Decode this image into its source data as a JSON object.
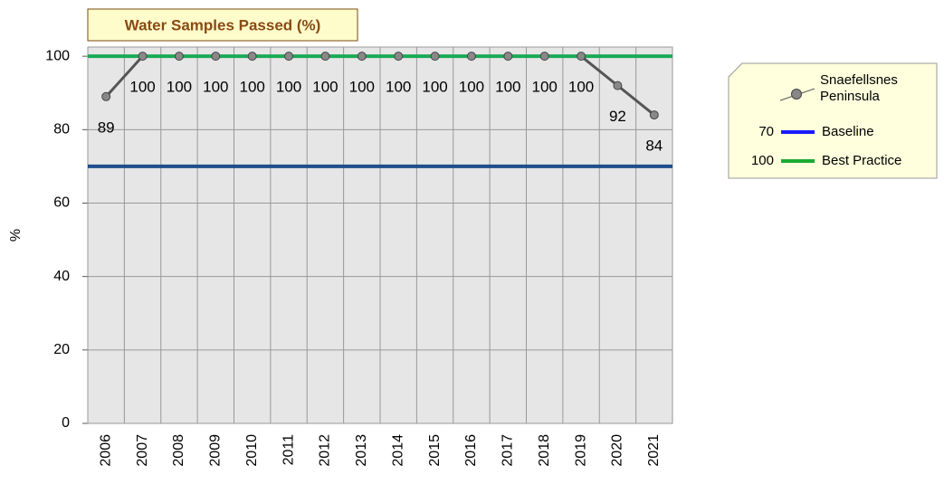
{
  "chart_data": {
    "type": "line",
    "title": "Water Samples Passed (%)",
    "y_label": "%",
    "categories": [
      "2006",
      "2007",
      "2008",
      "2009",
      "2010",
      "2011",
      "2012",
      "2013",
      "2014",
      "2015",
      "2016",
      "2017",
      "2018",
      "2019",
      "2020",
      "2021"
    ],
    "series": [
      {
        "name": "Snaefellsnes Peninsula",
        "color": "#555555",
        "values": [
          89,
          100,
          100,
          100,
          100,
          100,
          100,
          100,
          100,
          100,
          100,
          100,
          100,
          100,
          92,
          84
        ]
      }
    ],
    "reference_lines": [
      {
        "name": "Baseline",
        "value": 70,
        "color": "#1f4e8c",
        "legend_color": "#1a1aff"
      },
      {
        "name": "Best Practice",
        "value": 100,
        "color": "#1aaa55",
        "legend_color": "#1aaa33"
      }
    ],
    "ylim": [
      0,
      102.5
    ],
    "yticks": [
      0,
      20,
      40,
      60,
      80,
      100
    ],
    "grid": true,
    "legend": "right"
  }
}
